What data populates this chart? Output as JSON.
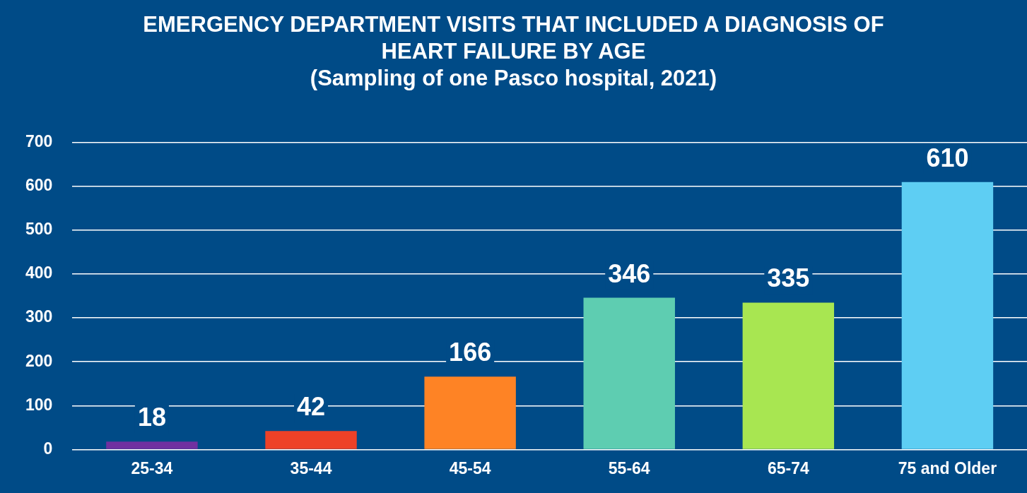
{
  "chart_data": {
    "type": "bar",
    "title": "EMERGENCY DEPARTMENT VISITS THAT INCLUDED A DIAGNOSIS OF HEART FAILURE BY AGE",
    "subtitle": "(Sampling of one Pasco hospital, 2021)",
    "categories": [
      "25-34",
      "35-44",
      "45-54",
      "55-64",
      "65-74",
      "75 and Older"
    ],
    "values": [
      18,
      42,
      166,
      346,
      335,
      610
    ],
    "colors": [
      "#7030a0",
      "#ee4127",
      "#fe8325",
      "#5ecdb1",
      "#a8e651",
      "#5ecef3"
    ],
    "ylim": [
      0,
      700
    ],
    "yticks": [
      0,
      100,
      200,
      300,
      400,
      500,
      600,
      700
    ],
    "grid": "y",
    "legend": false,
    "data_labels": true
  }
}
